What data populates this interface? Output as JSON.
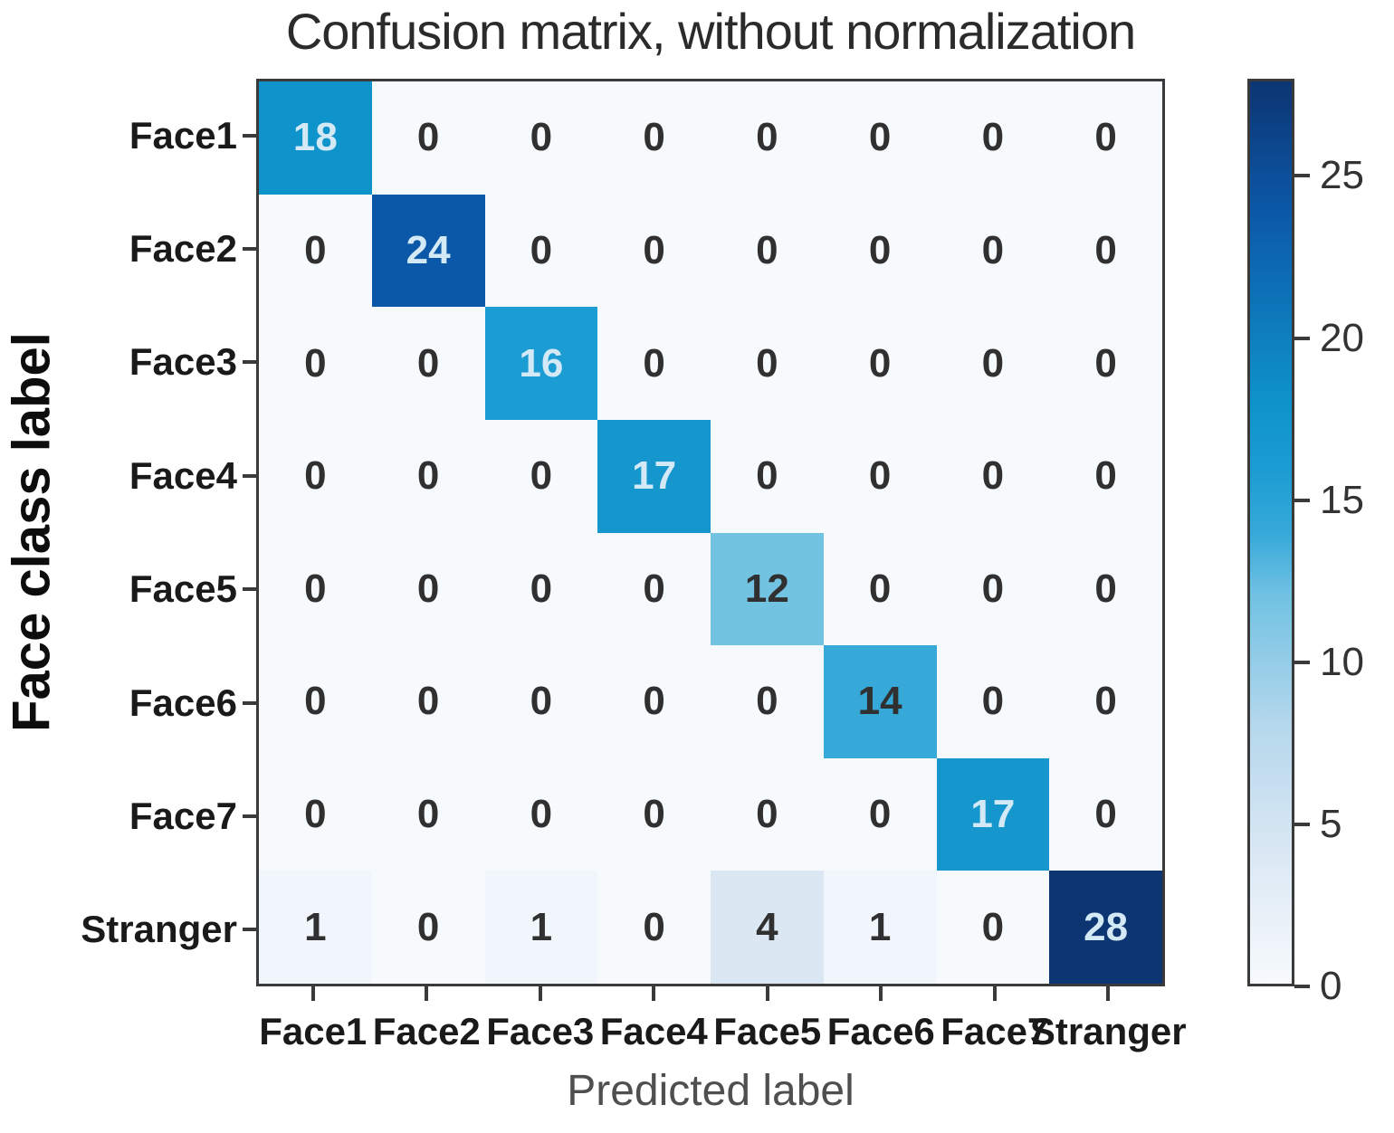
{
  "chart_data": {
    "type": "heatmap",
    "title": "Confusion matrix, without normalization",
    "xlabel": "Predicted label",
    "ylabel": "Face class label",
    "row_labels": [
      "Face1",
      "Face2",
      "Face3",
      "Face4",
      "Face5",
      "Face6",
      "Face7",
      "Stranger"
    ],
    "col_labels": [
      "Face1",
      "Face2",
      "Face3",
      "Face4",
      "Face5",
      "Face6",
      "Face7",
      "Stranger"
    ],
    "matrix": [
      [
        18,
        0,
        0,
        0,
        0,
        0,
        0,
        0
      ],
      [
        0,
        24,
        0,
        0,
        0,
        0,
        0,
        0
      ],
      [
        0,
        0,
        16,
        0,
        0,
        0,
        0,
        0
      ],
      [
        0,
        0,
        0,
        17,
        0,
        0,
        0,
        0
      ],
      [
        0,
        0,
        0,
        0,
        12,
        0,
        0,
        0
      ],
      [
        0,
        0,
        0,
        0,
        0,
        14,
        0,
        0
      ],
      [
        0,
        0,
        0,
        0,
        0,
        0,
        17,
        0
      ],
      [
        1,
        0,
        1,
        0,
        4,
        1,
        0,
        28
      ]
    ],
    "vmin": 0,
    "vmax": 28,
    "colorbar_ticks": [
      0,
      5,
      10,
      15,
      20,
      25
    ],
    "colormap_name": "Blues",
    "colormap_stops": [
      {
        "t": 0.0,
        "color": "#f7fafd"
      },
      {
        "t": 0.143,
        "color": "#dbe8f4"
      },
      {
        "t": 0.286,
        "color": "#b5d7ec"
      },
      {
        "t": 0.429,
        "color": "#72c2e2"
      },
      {
        "t": 0.5,
        "color": "#36a9d9"
      },
      {
        "t": 0.571,
        "color": "#1b9cd2"
      },
      {
        "t": 0.643,
        "color": "#0f93cb"
      },
      {
        "t": 0.857,
        "color": "#0b58a8"
      },
      {
        "t": 1.0,
        "color": "#0d3572"
      }
    ],
    "text_light_threshold": 14,
    "colors": {
      "text_light": "#d3e9f6",
      "text_dark": "#303030",
      "axis": "#3a3a3a"
    },
    "legend_position": "right-colorbar",
    "grid": "off"
  }
}
